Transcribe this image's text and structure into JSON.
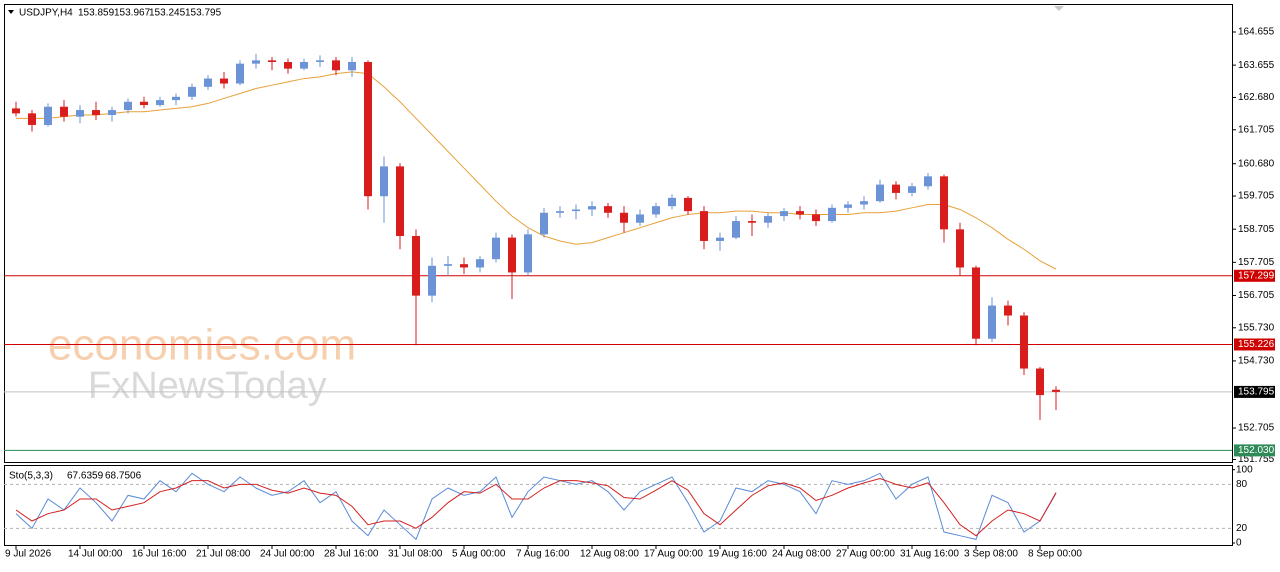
{
  "chart_data": {
    "type": "candlestick",
    "symbol": "USDJPY,H4",
    "categories": [
      "9 Jul 2026",
      null,
      null,
      null,
      "14 Jul 00:00",
      null,
      null,
      null,
      "16 Jul 16:00",
      null,
      null,
      null,
      "21 Jul 08:00",
      null,
      null,
      null,
      "24 Jul 00:00",
      null,
      null,
      null,
      "28 Jul 16:00",
      null,
      null,
      null,
      "31 Jul 08:00",
      null,
      null,
      null,
      "5 Aug 00:00",
      null,
      null,
      null,
      "7 Aug 16:00",
      null,
      null,
      null,
      "12 Aug 08:00",
      null,
      null,
      null,
      "17 Aug 00:00",
      null,
      null,
      null,
      "19 Aug 16:00",
      null,
      null,
      null,
      "24 Aug 08:00",
      null,
      null,
      null,
      "27 Aug 00:00",
      null,
      null,
      null,
      "31 Aug 16:00",
      null,
      null,
      null,
      "3 Sep 08:00",
      null,
      null,
      null,
      "8 Sep 00:00",
      null
    ],
    "open": [
      162.35,
      162.2,
      161.85,
      162.4,
      162.1,
      162.3,
      162.15,
      162.3,
      162.55,
      162.45,
      162.6,
      162.7,
      163.0,
      163.25,
      163.1,
      163.7,
      163.8,
      163.75,
      163.55,
      163.75,
      163.8,
      163.5,
      163.75,
      159.7,
      160.6,
      158.5,
      156.7,
      157.6,
      157.65,
      157.55,
      157.8,
      158.45,
      157.4,
      158.55,
      159.2,
      159.25,
      159.3,
      159.4,
      159.2,
      158.9,
      159.15,
      159.4,
      159.65,
      159.25,
      158.35,
      158.45,
      158.95,
      158.9,
      159.1,
      159.25,
      159.15,
      158.95,
      159.35,
      159.45,
      159.55,
      160.05,
      159.8,
      160.0,
      160.3,
      158.7,
      157.55,
      155.4,
      156.4,
      156.1,
      154.5,
      153.859
    ],
    "high": [
      162.55,
      162.3,
      162.5,
      162.6,
      162.45,
      162.55,
      162.4,
      162.65,
      162.7,
      162.7,
      162.8,
      163.1,
      163.35,
      163.45,
      163.8,
      164.0,
      163.9,
      163.85,
      163.85,
      163.95,
      163.9,
      163.9,
      163.8,
      160.9,
      160.7,
      158.7,
      157.85,
      157.9,
      157.85,
      157.9,
      158.6,
      158.55,
      158.7,
      159.35,
      159.4,
      159.45,
      159.55,
      159.5,
      159.4,
      159.3,
      159.5,
      159.75,
      159.7,
      159.4,
      158.6,
      159.1,
      159.15,
      159.2,
      159.35,
      159.4,
      159.3,
      159.45,
      159.55,
      159.7,
      160.2,
      160.15,
      160.1,
      160.4,
      160.35,
      158.9,
      157.6,
      156.65,
      156.55,
      156.2,
      154.55,
      153.967
    ],
    "low": [
      162.1,
      161.65,
      161.8,
      161.95,
      161.9,
      162.0,
      161.95,
      162.2,
      162.35,
      162.4,
      162.45,
      162.6,
      162.9,
      162.95,
      163.05,
      163.55,
      163.5,
      163.4,
      163.5,
      163.6,
      163.35,
      163.3,
      159.3,
      158.9,
      158.1,
      155.2,
      156.5,
      157.3,
      157.35,
      157.4,
      157.7,
      156.6,
      157.3,
      158.45,
      159.05,
      159.0,
      159.1,
      159.05,
      158.6,
      158.8,
      159.05,
      159.3,
      159.15,
      158.1,
      158.05,
      158.4,
      158.5,
      158.75,
      158.95,
      159.0,
      158.8,
      158.9,
      159.2,
      159.3,
      159.5,
      159.6,
      159.7,
      159.9,
      158.3,
      157.3,
      155.2,
      155.3,
      155.8,
      154.3,
      152.95,
      153.245
    ],
    "close": [
      162.2,
      161.85,
      162.4,
      162.1,
      162.3,
      162.15,
      162.3,
      162.55,
      162.45,
      162.6,
      162.7,
      163.0,
      163.25,
      163.1,
      163.7,
      163.8,
      163.75,
      163.55,
      163.75,
      163.8,
      163.5,
      163.75,
      159.7,
      160.6,
      158.5,
      156.7,
      157.6,
      157.65,
      157.55,
      157.8,
      158.45,
      157.4,
      158.55,
      159.2,
      159.25,
      159.3,
      159.4,
      159.2,
      158.9,
      159.15,
      159.4,
      159.65,
      159.25,
      158.35,
      158.45,
      158.95,
      158.9,
      159.1,
      159.25,
      159.15,
      158.95,
      159.35,
      159.45,
      159.55,
      160.05,
      159.8,
      160.0,
      160.3,
      158.7,
      157.55,
      155.4,
      156.4,
      156.1,
      154.5,
      153.7,
      153.795
    ],
    "up_color": "#6b93d6",
    "down_color": "#d91c1c",
    "ma": {
      "color": "#e8a03a",
      "values": [
        162.05,
        162.05,
        162.05,
        162.1,
        162.15,
        162.15,
        162.2,
        162.25,
        162.25,
        162.3,
        162.35,
        162.4,
        162.5,
        162.65,
        162.8,
        162.95,
        163.05,
        163.15,
        163.25,
        163.3,
        163.4,
        163.45,
        163.4,
        163.0,
        162.55,
        162.05,
        161.55,
        161.05,
        160.55,
        160.05,
        159.55,
        159.1,
        158.75,
        158.5,
        158.35,
        158.25,
        158.3,
        158.45,
        158.6,
        158.75,
        158.9,
        159.05,
        159.15,
        159.2,
        159.2,
        159.25,
        159.25,
        159.2,
        159.2,
        159.15,
        159.15,
        159.15,
        159.15,
        159.2,
        159.2,
        159.25,
        159.35,
        159.45,
        159.45,
        159.3,
        159.05,
        158.75,
        158.4,
        158.1,
        157.75,
        157.5
      ]
    },
    "ylim": [
      151.68,
      165.5
    ],
    "yticks": [
      164.655,
      163.655,
      {
        "value": 162.68,
        "label": "162.680"
      },
      161.705,
      {
        "value": 160.68,
        "label": "160.680"
      },
      159.705,
      158.705,
      157.705,
      156.705,
      {
        "value": 155.73,
        "label": "155.730"
      },
      {
        "value": 154.73,
        "label": "154.730"
      },
      152.705,
      151.755
    ],
    "levels": [
      {
        "value": 157.299,
        "color": "#d00000"
      },
      {
        "value": 155.226,
        "color": "#d00000"
      },
      {
        "value": 152.03,
        "label": "152.030",
        "color": "#2e8b57"
      }
    ],
    "watermarks": [
      "economies.com",
      "FxNewsToday"
    ],
    "stochastic": {
      "title": "Sto(5,3,3)",
      "ylim": [
        -2.7,
        105
      ],
      "yticks": [
        100,
        80,
        20,
        0
      ],
      "series": [
        {
          "color": "#5b8bd8",
          "values": [
            40,
            20,
            60,
            45,
            75,
            55,
            30,
            65,
            60,
            85,
            70,
            95,
            80,
            70,
            90,
            75,
            65,
            70,
            85,
            55,
            70,
            30,
            10,
            45,
            25,
            5,
            60,
            75,
            65,
            70,
            90,
            35,
            70,
            90,
            85,
            80,
            85,
            70,
            45,
            70,
            80,
            90,
            55,
            15,
            30,
            75,
            70,
            85,
            80,
            70,
            40,
            85,
            80,
            85,
            95,
            60,
            80,
            90,
            15,
            10,
            5,
            65,
            55,
            15,
            30,
            67.6359
          ]
        },
        {
          "color": "#d42020",
          "values": [
            45,
            30,
            40,
            45,
            60,
            60,
            45,
            50,
            55,
            70,
            75,
            85,
            85,
            75,
            80,
            80,
            72,
            68,
            75,
            68,
            65,
            50,
            25,
            30,
            30,
            20,
            35,
            55,
            70,
            68,
            80,
            60,
            60,
            75,
            85,
            85,
            82,
            78,
            62,
            60,
            72,
            85,
            72,
            40,
            25,
            45,
            65,
            78,
            82,
            75,
            58,
            65,
            75,
            82,
            88,
            80,
            75,
            82,
            55,
            25,
            10,
            30,
            45,
            40,
            30,
            68.7506
          ]
        }
      ]
    }
  }
}
